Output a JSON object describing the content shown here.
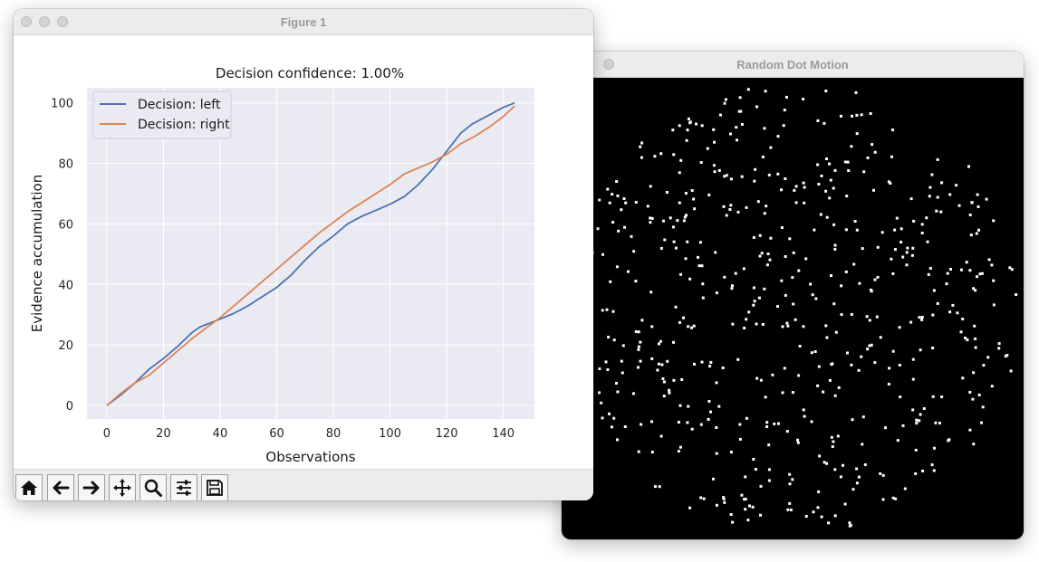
{
  "rdm_window": {
    "title": "Random Dot Motion"
  },
  "figure_window": {
    "title": "Figure 1"
  },
  "toolbar": [
    "home-icon",
    "back-arrow-icon",
    "forward-arrow-icon",
    "pan-icon",
    "zoom-icon",
    "configure-subplots-icon",
    "save-icon"
  ],
  "chart_data": {
    "type": "line",
    "title": "Decision confidence: 1.00%",
    "xlabel": "Observations",
    "ylabel": "Evidence accumulation",
    "xlim": [
      -7,
      151
    ],
    "ylim": [
      -4.5,
      105
    ],
    "xticks": [
      0,
      20,
      40,
      60,
      80,
      100,
      120,
      140
    ],
    "yticks": [
      0,
      20,
      40,
      60,
      80,
      100
    ],
    "grid": true,
    "legend": "top-left",
    "series": [
      {
        "name": "Decision: left",
        "color": "#4c72b0",
        "x": [
          0,
          5,
          10,
          15,
          20,
          25,
          30,
          33,
          40,
          45,
          50,
          55,
          60,
          65,
          70,
          75,
          80,
          85,
          90,
          95,
          100,
          105,
          110,
          115,
          120,
          125,
          129,
          135,
          140,
          144
        ],
        "y": [
          0,
          3.5,
          7.5,
          12,
          15.5,
          19.5,
          24,
          26,
          28.5,
          30.5,
          33,
          36,
          39,
          43,
          48,
          52.5,
          56,
          60,
          62.5,
          64.5,
          66.5,
          69,
          73,
          78,
          84,
          90,
          93,
          96,
          98.5,
          100
        ]
      },
      {
        "name": "Decision: right",
        "color": "#dd8452",
        "x": [
          0,
          5,
          10,
          15,
          20,
          25,
          30,
          35,
          40,
          45,
          50,
          55,
          60,
          65,
          70,
          75,
          80,
          85,
          90,
          95,
          100,
          105,
          110,
          115,
          120,
          125,
          130,
          135,
          140,
          144
        ],
        "y": [
          0,
          4,
          7.5,
          10,
          14,
          18,
          22,
          25.5,
          29,
          33,
          37,
          41,
          45,
          49,
          53,
          57,
          60.5,
          64,
          67,
          70,
          73,
          76.5,
          78.5,
          80.5,
          83,
          86.5,
          89,
          92,
          95.5,
          99
        ]
      }
    ]
  }
}
